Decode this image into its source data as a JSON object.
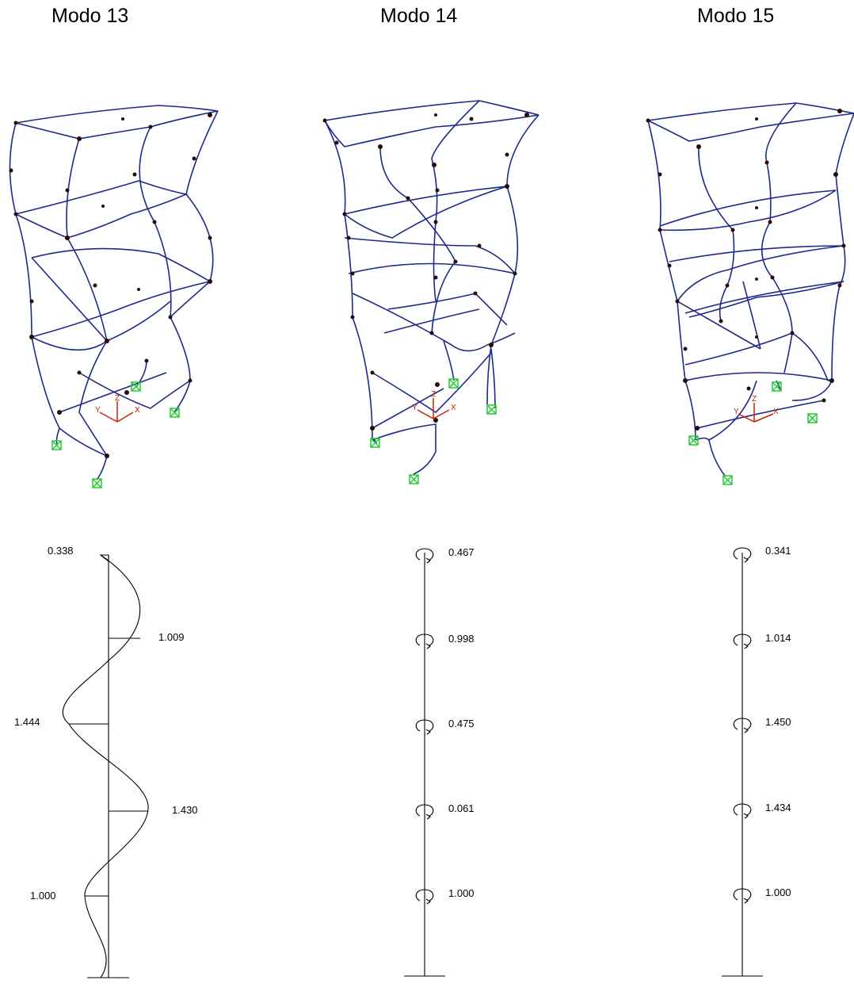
{
  "panels": [
    {
      "title": "Modo 13",
      "values": [
        "0.338",
        "1.009",
        "1.444",
        "1.430",
        "1.000"
      ]
    },
    {
      "title": "Modo 14",
      "values": [
        "0.467",
        "0.998",
        "0.475",
        "0.061",
        "1.000"
      ]
    },
    {
      "title": "Modo 15",
      "values": [
        "0.341",
        "1.014",
        "1.450",
        "1.434",
        "1.000"
      ]
    }
  ],
  "axis_triad": [
    "Y",
    "Z",
    "X"
  ],
  "colors": {
    "frame": "#1e2a8a",
    "node": "#2a0a0a",
    "support": "#22cc33",
    "axes": "#cc2200",
    "ink": "#000000"
  }
}
